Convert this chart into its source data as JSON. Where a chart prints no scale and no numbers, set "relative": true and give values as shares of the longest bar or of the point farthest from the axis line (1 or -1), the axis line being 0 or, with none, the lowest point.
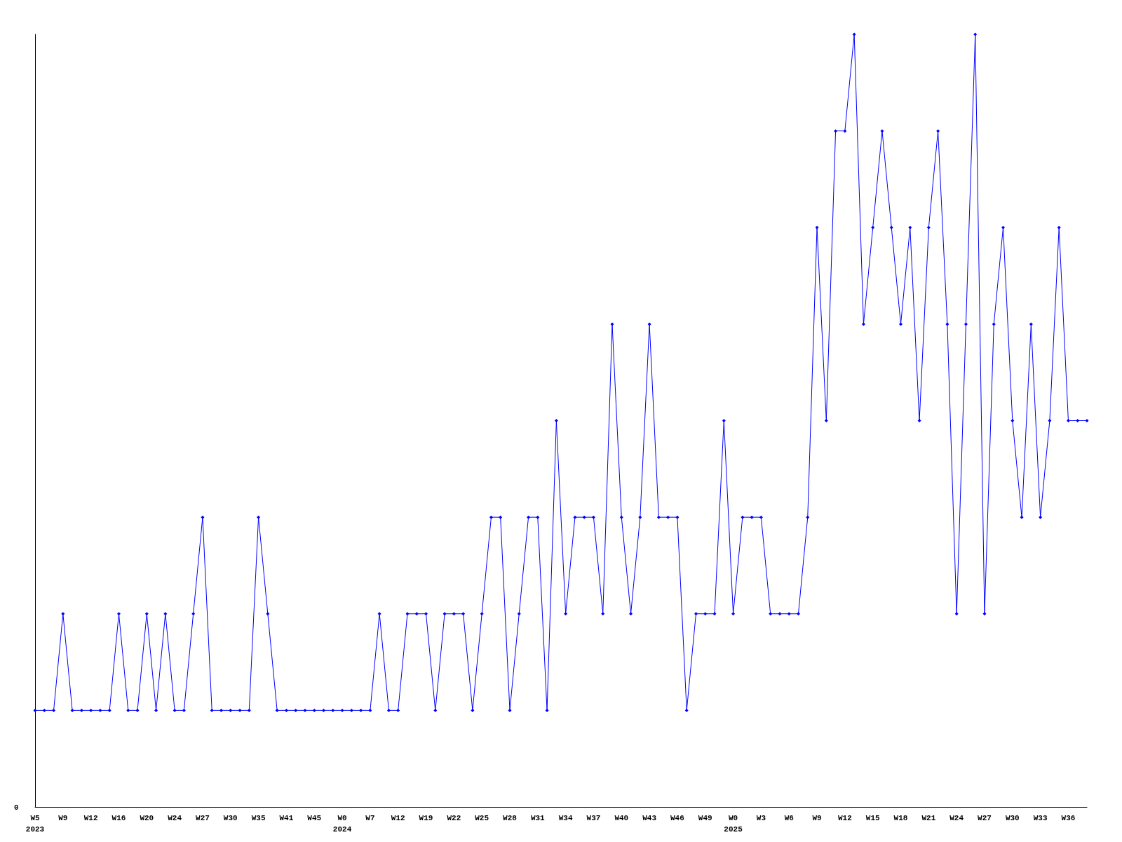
{
  "chart_data": {
    "type": "line",
    "relative": true,
    "marker": "diamond",
    "line_style": "solid",
    "grid": false,
    "annotations": [
      "0"
    ],
    "categories": [
      "W5\n2023",
      null,
      null,
      "W9",
      null,
      null,
      "W12",
      null,
      null,
      "W16",
      null,
      null,
      "W20",
      null,
      null,
      "W24",
      null,
      null,
      "W27",
      null,
      null,
      "W30",
      null,
      null,
      "W35",
      null,
      null,
      "W41",
      null,
      null,
      "W45",
      null,
      null,
      "W0\n2024",
      null,
      null,
      "W7",
      null,
      null,
      "W12",
      null,
      null,
      "W19",
      null,
      null,
      "W22",
      null,
      null,
      "W25",
      null,
      null,
      "W28",
      null,
      null,
      "W31",
      null,
      null,
      "W34",
      null,
      null,
      "W37",
      null,
      null,
      "W40",
      null,
      null,
      "W43",
      null,
      null,
      "W46",
      null,
      null,
      "W49",
      null,
      null,
      "W0\n2025",
      null,
      null,
      "W3",
      null,
      null,
      "W6",
      null,
      null,
      "W9",
      null,
      null,
      "W12",
      null,
      null,
      "W15",
      null,
      null,
      "W18",
      null,
      null,
      "W21",
      null,
      null,
      "W24",
      null,
      null,
      "W27",
      null,
      null,
      "W30",
      null,
      null,
      "W33",
      null,
      null,
      "W36",
      null,
      null
    ],
    "series": [
      {
        "color": "#0000ff",
        "values": [
          0.125,
          0.125,
          0.125,
          0.25,
          0.125,
          0.125,
          0.125,
          0.125,
          0.125,
          0.25,
          0.125,
          0.125,
          0.25,
          0.125,
          0.25,
          0.125,
          0.125,
          0.25,
          0.375,
          0.125,
          0.125,
          0.125,
          0.125,
          0.125,
          0.375,
          0.25,
          0.125,
          0.125,
          0.125,
          0.125,
          0.125,
          0.125,
          0.125,
          0.125,
          0.125,
          0.125,
          0.125,
          0.25,
          0.125,
          0.125,
          0.25,
          0.25,
          0.25,
          0.125,
          0.25,
          0.25,
          0.25,
          0.125,
          0.25,
          0.375,
          0.375,
          0.125,
          0.25,
          0.375,
          0.375,
          0.125,
          0.5,
          0.25,
          0.375,
          0.375,
          0.375,
          0.25,
          0.625,
          0.375,
          0.25,
          0.375,
          0.625,
          0.375,
          0.375,
          0.375,
          0.125,
          0.25,
          0.25,
          0.25,
          0.5,
          0.25,
          0.375,
          0.375,
          0.375,
          0.25,
          0.25,
          0.25,
          0.25,
          0.375,
          0.75,
          0.5,
          0.875,
          0.875,
          1,
          0.625,
          0.75,
          0.875,
          0.75,
          0.625,
          0.75,
          0.5,
          0.75,
          0.875,
          0.625,
          0.25,
          0.625,
          1,
          0.25,
          0.625,
          0.75,
          0.5,
          0.375,
          0.625,
          0.375,
          0.5,
          0.75,
          0.5,
          0.5,
          0.5
        ]
      }
    ]
  }
}
